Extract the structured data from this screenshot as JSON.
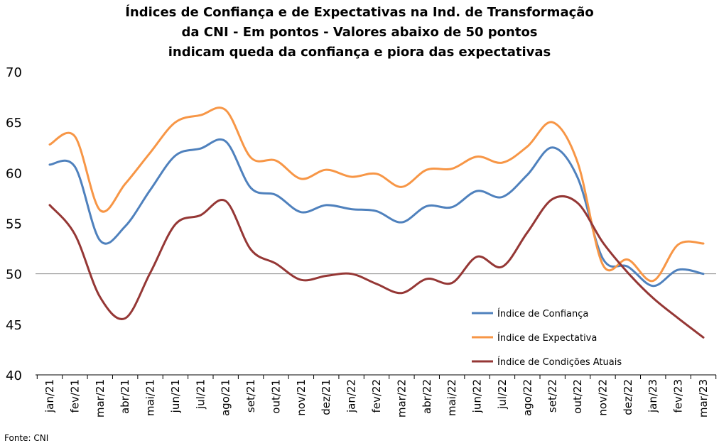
{
  "chart_data": {
    "type": "line",
    "title_lines": [
      "Índices de Confiança e de Expectativas na Ind. de Transformação",
      "da CNI - Em pontos - Valores abaixo de 50 pontos",
      "indicam queda da confiança e piora das expectativas"
    ],
    "categories": [
      "jan/21",
      "fev/21",
      "mar/21",
      "abr/21",
      "mai/21",
      "jun/21",
      "jul/21",
      "ago/21",
      "set/21",
      "out/21",
      "nov/21",
      "dez/21",
      "jan/22",
      "fev/22",
      "mar/22",
      "abr/22",
      "mai/22",
      "jun/22",
      "jul/22",
      "ago/22",
      "set/22",
      "out/22",
      "nov/22",
      "dez/22",
      "jan/23",
      "fev/23",
      "mar/23"
    ],
    "ylim": [
      40,
      70
    ],
    "yticks": [
      40,
      45,
      50,
      55,
      60,
      65,
      70
    ],
    "reference_line": 50,
    "grid": false,
    "legend_position": "bottom-right",
    "series": [
      {
        "name": "Índice de Confiança",
        "color": "#4f81bd",
        "values": [
          60.8,
          60.6,
          53.3,
          54.7,
          58.3,
          61.7,
          62.4,
          63.1,
          58.5,
          57.8,
          56.1,
          56.8,
          56.4,
          56.2,
          55.1,
          56.7,
          56.6,
          58.2,
          57.6,
          59.8,
          62.5,
          59.5,
          51.5,
          50.7,
          48.8,
          50.4,
          50.0
        ]
      },
      {
        "name": "Índice de Expectativa",
        "color": "#f79646",
        "values": [
          62.8,
          63.6,
          56.3,
          58.9,
          62.0,
          65.0,
          65.7,
          66.2,
          61.5,
          61.2,
          59.4,
          60.3,
          59.6,
          59.9,
          58.6,
          60.3,
          60.4,
          61.6,
          61.0,
          62.6,
          65.0,
          61.0,
          50.9,
          51.4,
          49.3,
          52.9,
          53.0
        ]
      },
      {
        "name": "Índice de Condições Atuais",
        "color": "#953735",
        "values": [
          56.8,
          53.9,
          47.7,
          45.6,
          50.1,
          54.9,
          55.8,
          57.2,
          52.4,
          51.0,
          49.4,
          49.8,
          50.0,
          49.0,
          48.1,
          49.5,
          49.1,
          51.7,
          50.7,
          54.1,
          57.4,
          57.0,
          53.1,
          50.1,
          47.6,
          45.6,
          43.7
        ]
      }
    ]
  },
  "source_note": "Fonte: CNI"
}
